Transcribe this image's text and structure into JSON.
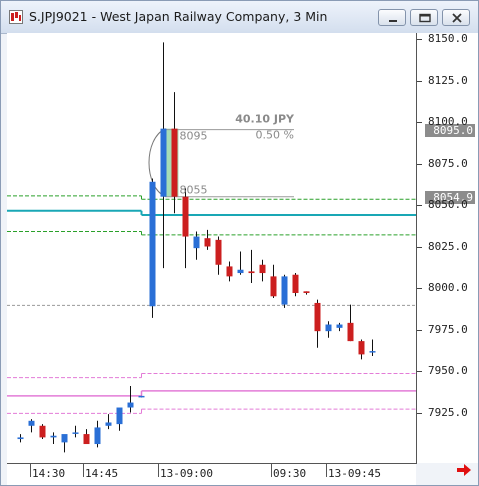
{
  "window": {
    "title": "S.JPJ9021 - West Japan Railway Company, 3 Min"
  },
  "colors": {
    "up": "#2a6fd6",
    "down": "#cc1f1f",
    "ma_cyan": "#19a7b5",
    "band_green": "#2aa02a",
    "band_pink": "#e37bd7",
    "ref_gray": "#9a9a9a",
    "selection": "#5cc07a"
  },
  "measurement": {
    "diff": "40.10  JPY",
    "pct": "0.50  %",
    "from_label": "8055",
    "to_label": "8095"
  },
  "price_boxes": [
    "8095.0",
    "8054.9"
  ],
  "chart_data": {
    "type": "candlestick",
    "y_ticks": [
      "8150.0",
      "8125.0",
      "8100.0",
      "8075.0",
      "8050.0",
      "8025.0",
      "8000.0",
      "7975.0",
      "7950.0",
      "7925.0"
    ],
    "x_labels": [
      "14:30",
      "14:45",
      "13-09:00",
      "09:30",
      "13-09:45"
    ],
    "ylim": [
      7895,
      8160
    ],
    "candles": [
      {
        "o": 7909,
        "h": 7912,
        "l": 7907,
        "c": 7910
      },
      {
        "o": 7917,
        "h": 7921,
        "l": 7913,
        "c": 7920
      },
      {
        "o": 7917,
        "h": 7918,
        "l": 7909,
        "c": 7910
      },
      {
        "o": 7910,
        "h": 7913,
        "l": 7906,
        "c": 7911
      },
      {
        "o": 7907,
        "h": 7910,
        "l": 7901,
        "c": 7912
      },
      {
        "o": 7913,
        "h": 7917,
        "l": 7910,
        "c": 7913
      },
      {
        "o": 7912,
        "h": 7915,
        "l": 7906,
        "c": 7906
      },
      {
        "o": 7906,
        "h": 7920,
        "l": 7904,
        "c": 7916
      },
      {
        "o": 7917,
        "h": 7924,
        "l": 7915,
        "c": 7919
      },
      {
        "o": 7918,
        "h": 7927,
        "l": 7914,
        "c": 7928
      },
      {
        "o": 7928,
        "h": 7941,
        "l": 7925,
        "c": 7931
      },
      {
        "o": 7935,
        "h": 7935,
        "l": 7934,
        "c": 7935
      },
      {
        "o": 7989,
        "h": 8066,
        "l": 7982,
        "c": 8064
      },
      {
        "o": 8055,
        "h": 8148,
        "l": 8012,
        "c": 8096
      },
      {
        "o": 8096,
        "h": 8118,
        "l": 8045,
        "c": 8055
      },
      {
        "o": 8055,
        "h": 8060,
        "l": 8012,
        "c": 8031
      },
      {
        "o": 8024,
        "h": 8034,
        "l": 8017,
        "c": 8031
      },
      {
        "o": 8030,
        "h": 8035,
        "l": 8023,
        "c": 8025
      },
      {
        "o": 8029,
        "h": 8031,
        "l": 8008,
        "c": 8014
      },
      {
        "o": 8013,
        "h": 8016,
        "l": 8004,
        "c": 8007
      },
      {
        "o": 8009,
        "h": 8022,
        "l": 8008,
        "c": 8011
      },
      {
        "o": 8010,
        "h": 8023,
        "l": 8003,
        "c": 8009
      },
      {
        "o": 8014,
        "h": 8017,
        "l": 8004,
        "c": 8009
      },
      {
        "o": 8007,
        "h": 8014,
        "l": 7994,
        "c": 7995
      },
      {
        "o": 7990,
        "h": 8008,
        "l": 7988,
        "c": 8007
      },
      {
        "o": 8008,
        "h": 8009,
        "l": 7995,
        "c": 7997
      },
      {
        "o": 7998,
        "h": 7998,
        "l": 7996,
        "c": 7997
      },
      {
        "o": 7991,
        "h": 7993,
        "l": 7964,
        "c": 7974
      },
      {
        "o": 7974,
        "h": 7980,
        "l": 7970,
        "c": 7978
      },
      {
        "o": 7976,
        "h": 7979,
        "l": 7974,
        "c": 7978
      },
      {
        "o": 7979,
        "h": 7990,
        "l": 7968,
        "c": 7968
      },
      {
        "o": 7968,
        "h": 7969,
        "l": 7957,
        "c": 7960
      },
      {
        "o": 7962,
        "h": 7969,
        "l": 7959,
        "c": 7962
      }
    ],
    "ref_line": 7989.5,
    "ma_line": [
      {
        "x0": 0,
        "x1": 11.5,
        "y": 8046.5
      },
      {
        "x0": 11.5,
        "x1": 33,
        "y": 8044.0
      }
    ],
    "bands": {
      "green": [
        {
          "x0": 0,
          "x1": 11.5,
          "y": 8055.5
        },
        {
          "x0": 11.5,
          "x1": 33,
          "y": 8053.5
        },
        {
          "x0": 0,
          "x1": 11.5,
          "y": 8034.0
        },
        {
          "x0": 11.5,
          "x1": 33,
          "y": 8032.0
        }
      ],
      "pink": [
        {
          "x0": 0,
          "x1": 11.5,
          "y": 7946.0
        },
        {
          "x0": 11.5,
          "x1": 33,
          "y": 7948.5
        },
        {
          "x0": 0,
          "x1": 11.5,
          "y": 7924.5
        },
        {
          "x0": 11.5,
          "x1": 33,
          "y": 7927.0
        }
      ],
      "pink_solid": [
        {
          "x0": 0,
          "x1": 11.5,
          "y": 7935.0
        },
        {
          "x0": 11.5,
          "x1": 33,
          "y": 7938.0
        }
      ]
    },
    "selection_range": {
      "from_candle": 13,
      "to_candle": 14,
      "low": 8055,
      "high": 8096
    }
  }
}
